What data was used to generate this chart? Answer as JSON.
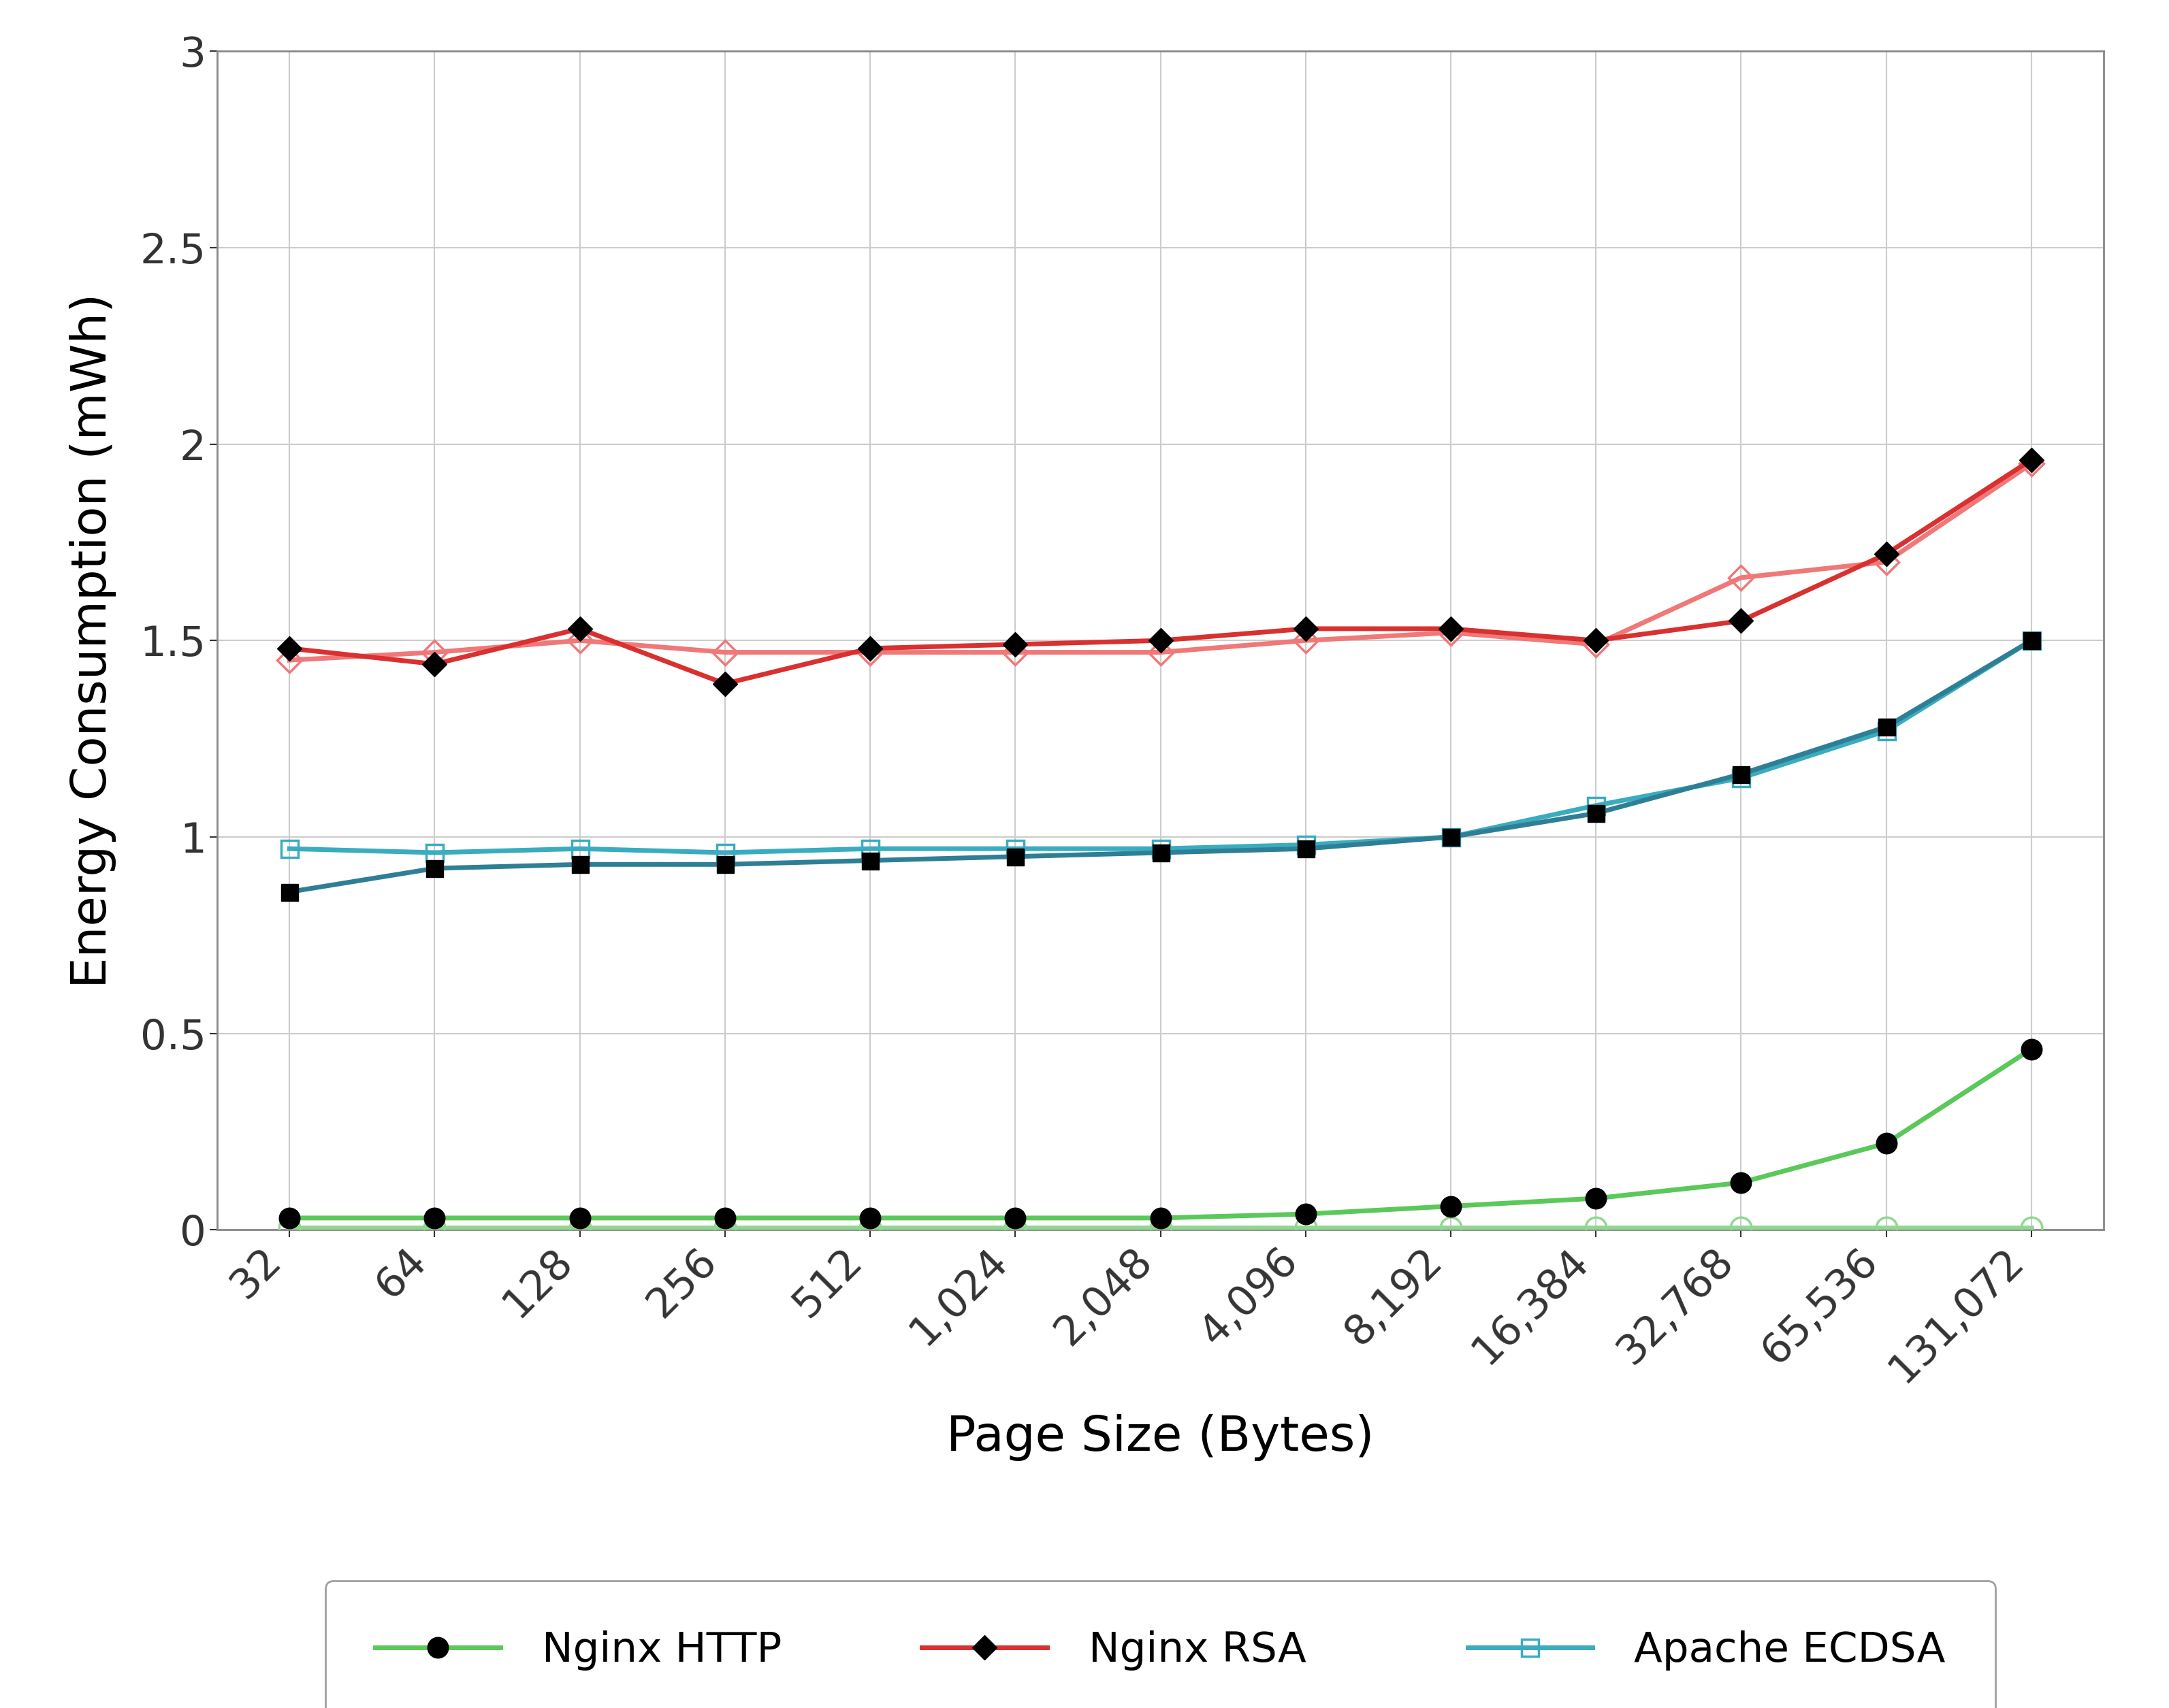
{
  "x_labels": [
    "32",
    "64",
    "128",
    "256",
    "512",
    "1,024",
    "2,048",
    "4,096",
    "8,192",
    "16,384",
    "32,768",
    "65,536",
    "131,072"
  ],
  "x_values": [
    32,
    64,
    128,
    256,
    512,
    1024,
    2048,
    4096,
    8192,
    16384,
    32768,
    65536,
    131072
  ],
  "nginx_http": [
    0.03,
    0.03,
    0.03,
    0.03,
    0.03,
    0.03,
    0.03,
    0.04,
    0.06,
    0.08,
    0.12,
    0.22,
    0.46
  ],
  "apache_http": [
    0.005,
    0.005,
    0.005,
    0.005,
    0.005,
    0.005,
    0.005,
    0.005,
    0.005,
    0.005,
    0.005,
    0.005,
    0.005
  ],
  "nginx_ecdsa": [
    0.86,
    0.92,
    0.93,
    0.93,
    0.94,
    0.95,
    0.96,
    0.97,
    1.0,
    1.06,
    1.16,
    1.28,
    1.5
  ],
  "apache_ecdsa": [
    0.97,
    0.96,
    0.97,
    0.96,
    0.97,
    0.97,
    0.97,
    0.98,
    1.0,
    1.08,
    1.15,
    1.27,
    1.5
  ],
  "nginx_rsa": [
    1.48,
    1.44,
    1.53,
    1.39,
    1.48,
    1.49,
    1.5,
    1.53,
    1.53,
    1.5,
    1.55,
    1.72,
    1.96
  ],
  "apache_rsa": [
    1.45,
    1.47,
    1.5,
    1.47,
    1.47,
    1.47,
    1.47,
    1.5,
    1.52,
    1.49,
    1.66,
    1.7,
    1.95
  ],
  "color_nginx_http": "#5bc85a",
  "color_apache_http": "#90d890",
  "color_nginx_ecdsa": "#2e7f96",
  "color_apache_ecdsa": "#3aacbf",
  "color_nginx_rsa": "#d93030",
  "color_apache_rsa": "#f07878",
  "xlabel": "Page Size (Bytes)",
  "ylabel": "Energy Consumption (mWh)",
  "ylim": [
    0,
    3.0
  ],
  "yticks": [
    0,
    0.5,
    1.0,
    1.5,
    2.0,
    2.5,
    3.0
  ],
  "xlabel_fontsize": 52,
  "ylabel_fontsize": 52,
  "tick_fontsize": 44,
  "legend_fontsize": 44,
  "linewidth": 5.0,
  "marker_size": 18,
  "marker_size_large": 22,
  "background_color": "#ffffff",
  "grid_color": "#cccccc",
  "spine_color": "#888888"
}
